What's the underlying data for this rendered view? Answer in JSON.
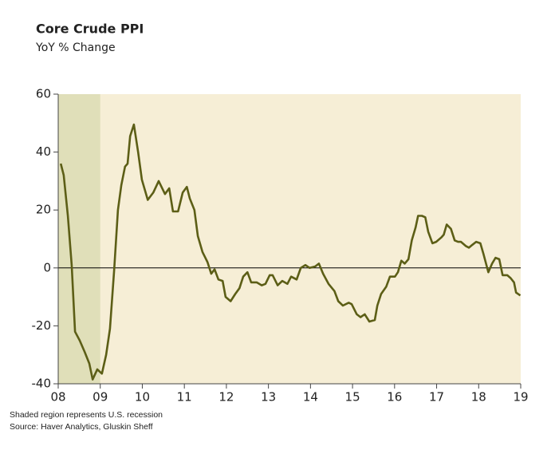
{
  "chart_data": {
    "type": "line",
    "title": "Core Crude PPI",
    "subtitle": "YoY % Change",
    "notes": [
      "Shaded region represents U.S. recession",
      "Source: Haver Analytics, Gluskin Sheff"
    ],
    "color": "#5c5e16",
    "shaded_region": [
      2008,
      2009
    ],
    "shade_color": "#e0dfb9",
    "background": "#f6eed6",
    "zero_line": 0,
    "x": [
      2008.06,
      2008.13,
      2008.23,
      2008.32,
      2008.4,
      2008.51,
      2008.63,
      2008.74,
      2008.82,
      2008.93,
      2009.04,
      2009.14,
      2009.23,
      2009.33,
      2009.42,
      2009.5,
      2009.59,
      2009.65,
      2009.71,
      2009.8,
      2009.9,
      2009.99,
      2010.13,
      2010.26,
      2010.39,
      2010.54,
      2010.64,
      2010.73,
      2010.85,
      2010.96,
      2011.06,
      2011.13,
      2011.24,
      2011.32,
      2011.43,
      2011.55,
      2011.64,
      2011.72,
      2011.81,
      2011.91,
      2011.98,
      2012.1,
      2012.21,
      2012.31,
      2012.4,
      2012.5,
      2012.59,
      2012.72,
      2012.84,
      2012.93,
      2013.03,
      2013.1,
      2013.22,
      2013.33,
      2013.45,
      2013.54,
      2013.67,
      2013.77,
      2013.88,
      2013.98,
      2014.11,
      2014.2,
      2014.3,
      2014.43,
      2014.57,
      2014.66,
      2014.77,
      2014.91,
      2014.98,
      2015.1,
      2015.19,
      2015.29,
      2015.4,
      2015.53,
      2015.59,
      2015.68,
      2015.8,
      2015.89,
      2016.01,
      2016.08,
      2016.16,
      2016.24,
      2016.33,
      2016.41,
      2016.5,
      2016.56,
      2016.65,
      2016.73,
      2016.8,
      2016.9,
      2016.99,
      2017.11,
      2017.17,
      2017.24,
      2017.34,
      2017.43,
      2017.51,
      2017.58,
      2017.7,
      2017.77,
      2017.85,
      2017.94,
      2018.04,
      2018.11,
      2018.23,
      2018.32,
      2018.4,
      2018.49,
      2018.57,
      2018.68,
      2018.76,
      2018.84,
      2018.89,
      2018.99
    ],
    "values": [
      36,
      32,
      18,
      1,
      -22,
      -25,
      -29,
      -33,
      -38.5,
      -35,
      -36.5,
      -30,
      -21,
      -1,
      20,
      28.5,
      35,
      36,
      45.5,
      49.5,
      40,
      30.5,
      23.5,
      26,
      30,
      25.5,
      27.5,
      19.5,
      19.5,
      26,
      28,
      24,
      20,
      11,
      5.5,
      2,
      -2,
      -0.5,
      -4,
      -4.5,
      -10,
      -11.5,
      -9,
      -7,
      -3,
      -1.5,
      -5,
      -5,
      -6,
      -5.5,
      -2.5,
      -2.5,
      -6,
      -4.5,
      -5.5,
      -3,
      -4,
      0,
      1,
      0,
      0.5,
      1.5,
      -2,
      -5.5,
      -8,
      -11.5,
      -13,
      -12,
      -12.5,
      -16,
      -17,
      -16,
      -18.5,
      -18,
      -13,
      -9,
      -6.5,
      -3,
      -3,
      -1.5,
      2.5,
      1.5,
      3,
      9.5,
      14,
      18,
      18,
      17.5,
      12.5,
      8.5,
      9,
      10.5,
      11.5,
      15,
      13.5,
      9.5,
      9,
      9,
      7.5,
      7,
      8,
      9,
      8.5,
      5,
      -1.5,
      1.5,
      3.5,
      3,
      -2.5,
      -2.5,
      -3.5,
      -5,
      -8.5,
      -9.5
    ],
    "xlim": [
      2008,
      2019
    ],
    "ylim": [
      -40,
      60
    ],
    "xticks": [
      {
        "value": 2008,
        "label": "08"
      },
      {
        "value": 2009,
        "label": "09"
      },
      {
        "value": 2010,
        "label": "10"
      },
      {
        "value": 2011,
        "label": "11"
      },
      {
        "value": 2012,
        "label": "12"
      },
      {
        "value": 2013,
        "label": "13"
      },
      {
        "value": 2014,
        "label": "14"
      },
      {
        "value": 2015,
        "label": "15"
      },
      {
        "value": 2016,
        "label": "16"
      },
      {
        "value": 2017,
        "label": "17"
      },
      {
        "value": 2018,
        "label": "18"
      },
      {
        "value": 2019,
        "label": "19"
      }
    ],
    "yticks": [
      -40,
      -20,
      0,
      20,
      40,
      60
    ]
  }
}
